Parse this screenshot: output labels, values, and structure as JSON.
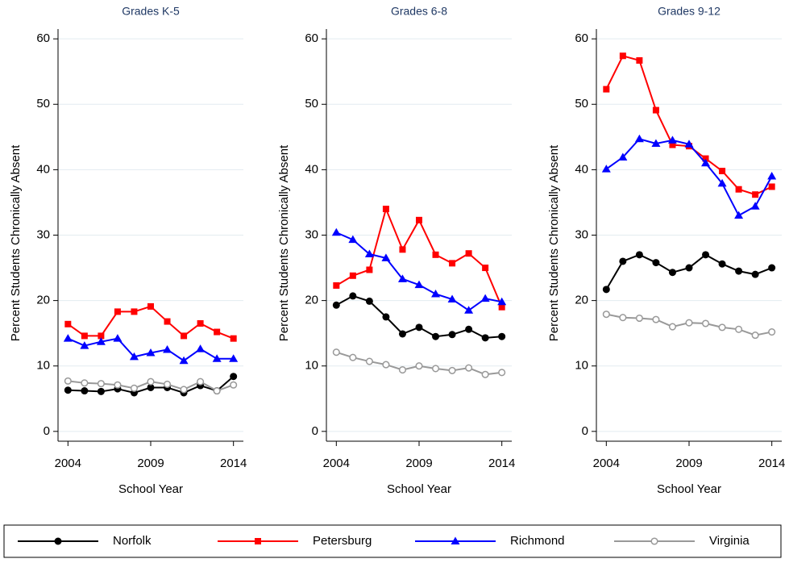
{
  "chart_data": [
    {
      "type": "line",
      "title": "Grades K-5",
      "x_label": "School Year",
      "y_label": "Percent Students Chronically Absent",
      "x": [
        2004,
        2005,
        2006,
        2007,
        2008,
        2009,
        2010,
        2011,
        2012,
        2013,
        2014
      ],
      "xlim": [
        2003.4,
        2014.6
      ],
      "xticks": [
        2004,
        2009,
        2014
      ],
      "ylim": [
        -1.5,
        61.5
      ],
      "yticks": [
        0,
        10,
        20,
        30,
        40,
        50,
        60
      ],
      "grid": true,
      "series": [
        {
          "name": "Norfolk",
          "color": "#000000",
          "marker": "circle",
          "values": [
            6.3,
            6.2,
            6.1,
            6.5,
            5.9,
            6.7,
            6.7,
            5.9,
            7.0,
            6.2,
            8.4
          ]
        },
        {
          "name": "Petersburg",
          "color": "#ff0000",
          "marker": "square",
          "values": [
            16.4,
            14.6,
            14.6,
            18.3,
            18.3,
            19.1,
            16.8,
            14.6,
            16.5,
            15.2,
            14.2
          ]
        },
        {
          "name": "Richmond",
          "color": "#0000ff",
          "marker": "triangle",
          "values": [
            14.2,
            13.1,
            13.7,
            14.2,
            11.4,
            12.0,
            12.5,
            10.8,
            12.6,
            11.1,
            11.1
          ]
        },
        {
          "name": "Virginia",
          "color": "#999999",
          "marker": "hollow-circle",
          "values": [
            7.7,
            7.4,
            7.3,
            7.1,
            6.6,
            7.6,
            7.2,
            6.4,
            7.6,
            6.2,
            7.1
          ]
        }
      ]
    },
    {
      "type": "line",
      "title": "Grades 6-8",
      "x_label": "School Year",
      "y_label": "Percent Students Chronically Absent",
      "x": [
        2004,
        2005,
        2006,
        2007,
        2008,
        2009,
        2010,
        2011,
        2012,
        2013,
        2014
      ],
      "xlim": [
        2003.4,
        2014.6
      ],
      "xticks": [
        2004,
        2009,
        2014
      ],
      "ylim": [
        -1.5,
        61.5
      ],
      "yticks": [
        0,
        10,
        20,
        30,
        40,
        50,
        60
      ],
      "grid": true,
      "series": [
        {
          "color": "#000000",
          "marker": "circle",
          "values": [
            19.3,
            20.7,
            19.9,
            17.5,
            14.9,
            15.9,
            14.5,
            14.8,
            15.6,
            14.3,
            14.5
          ]
        },
        {
          "color": "#ff0000",
          "marker": "square",
          "values": [
            22.3,
            23.8,
            24.7,
            34.0,
            27.8,
            32.3,
            27.0,
            25.7,
            27.2,
            25.0,
            19.0
          ]
        },
        {
          "color": "#0000ff",
          "marker": "triangle",
          "values": [
            30.4,
            29.3,
            27.1,
            26.5,
            23.3,
            22.4,
            21.0,
            20.2,
            18.5,
            20.3,
            19.8
          ]
        },
        {
          "color": "#999999",
          "marker": "hollow-circle",
          "values": [
            12.1,
            11.3,
            10.7,
            10.2,
            9.4,
            10.0,
            9.6,
            9.3,
            9.7,
            8.7,
            9.0
          ]
        }
      ]
    },
    {
      "type": "line",
      "title": "Grades 9-12",
      "x_label": "School Year",
      "y_label": "Percent Students Chronically Absent",
      "x": [
        2004,
        2005,
        2006,
        2007,
        2008,
        2009,
        2010,
        2011,
        2012,
        2013,
        2014
      ],
      "xlim": [
        2003.4,
        2014.6
      ],
      "xticks": [
        2004,
        2009,
        2014
      ],
      "ylim": [
        -1.5,
        61.5
      ],
      "yticks": [
        0,
        10,
        20,
        30,
        40,
        50,
        60
      ],
      "grid": true,
      "series": [
        {
          "color": "#000000",
          "marker": "circle",
          "values": [
            21.7,
            26.0,
            27.0,
            25.8,
            24.3,
            25.0,
            27.0,
            25.6,
            24.5,
            24.0,
            25.0
          ]
        },
        {
          "color": "#ff0000",
          "marker": "square",
          "values": [
            52.3,
            57.4,
            56.7,
            49.1,
            43.8,
            43.6,
            41.7,
            39.8,
            37.0,
            36.2,
            37.4
          ]
        },
        {
          "color": "#0000ff",
          "marker": "triangle",
          "values": [
            40.1,
            41.9,
            44.7,
            44.0,
            44.5,
            43.9,
            41.0,
            37.9,
            33.0,
            34.4,
            39.0
          ]
        },
        {
          "color": "#999999",
          "marker": "hollow-circle",
          "values": [
            17.9,
            17.4,
            17.3,
            17.1,
            16.0,
            16.6,
            16.5,
            15.9,
            15.6,
            14.7,
            15.2
          ]
        }
      ]
    }
  ]
}
